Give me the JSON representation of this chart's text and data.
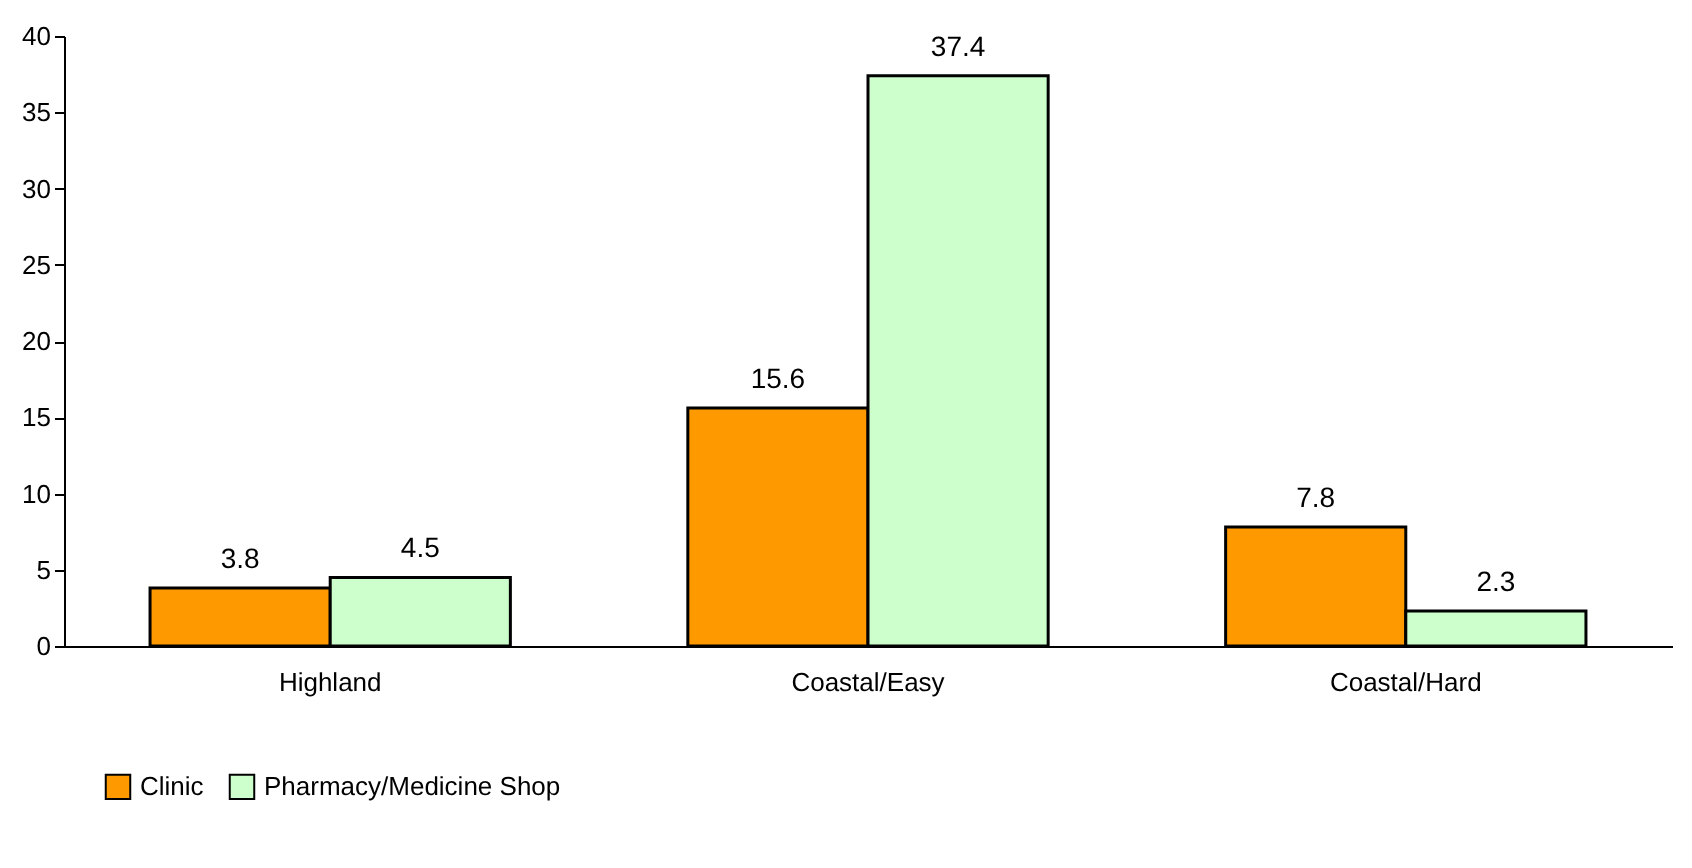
{
  "chart_data": {
    "type": "bar",
    "categories": [
      "Highland",
      "Coastal/Easy",
      "Coastal/Hard"
    ],
    "series": [
      {
        "name": "Clinic",
        "color": "#ff9900",
        "values": [
          3.8,
          15.6,
          7.8
        ]
      },
      {
        "name": "Pharmacy/Medicine Shop",
        "color": "#ccffcc",
        "values": [
          4.5,
          37.4,
          2.3
        ]
      }
    ],
    "ylim": [
      0,
      40
    ],
    "yticks": [
      0,
      5,
      10,
      15,
      20,
      25,
      30,
      35,
      40
    ],
    "data_labels": true,
    "legend": "bottom",
    "grid": false
  }
}
